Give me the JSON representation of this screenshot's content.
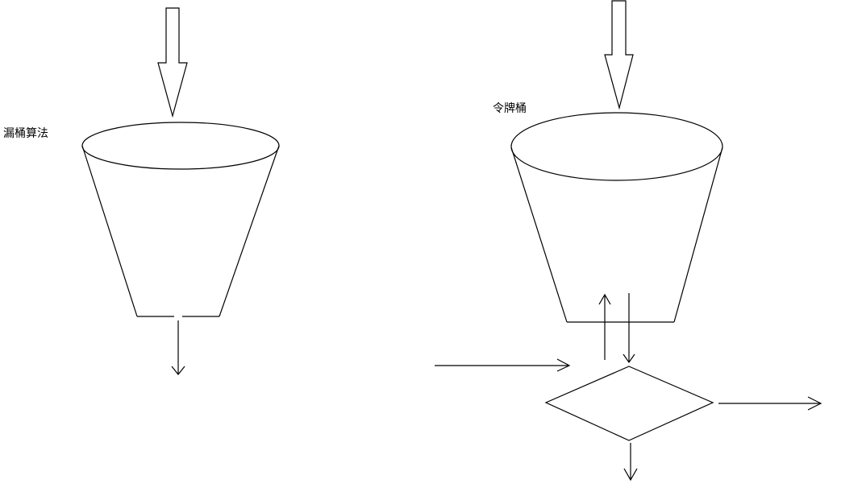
{
  "labels": {
    "leaky_bucket": "漏桶算法",
    "token_bucket": "令牌桶"
  }
}
